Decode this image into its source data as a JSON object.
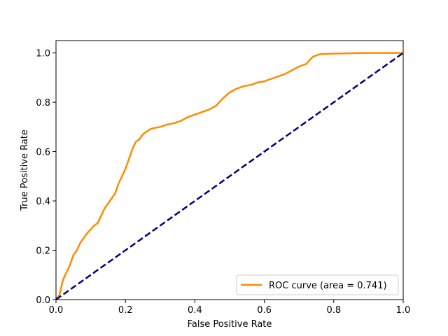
{
  "chart_data": {
    "type": "line",
    "title": "",
    "xlabel": "False Positive Rate",
    "ylabel": "True Positive Rate",
    "xlim": [
      0.0,
      1.0
    ],
    "ylim": [
      0.0,
      1.05
    ],
    "xticks": [
      "0.0",
      "0.2",
      "0.4",
      "0.6",
      "0.8",
      "1.0"
    ],
    "yticks": [
      "0.0",
      "0.2",
      "0.4",
      "0.6",
      "0.8",
      "1.0"
    ],
    "grid": false,
    "legend_position": "lower-right",
    "series": [
      {
        "name": "ROC curve (area = 0.741)",
        "color": "#ff8c00",
        "style": "solid",
        "x": [
          0.0,
          0.01,
          0.015,
          0.02,
          0.03,
          0.04,
          0.05,
          0.06,
          0.07,
          0.08,
          0.09,
          0.1,
          0.11,
          0.12,
          0.13,
          0.14,
          0.15,
          0.16,
          0.17,
          0.18,
          0.19,
          0.2,
          0.21,
          0.22,
          0.23,
          0.24,
          0.25,
          0.26,
          0.27,
          0.28,
          0.3,
          0.32,
          0.34,
          0.36,
          0.38,
          0.4,
          0.42,
          0.44,
          0.46,
          0.47,
          0.48,
          0.5,
          0.52,
          0.54,
          0.56,
          0.58,
          0.6,
          0.62,
          0.64,
          0.66,
          0.68,
          0.7,
          0.72,
          0.73,
          0.74,
          0.75,
          0.76,
          0.8,
          0.85,
          0.9,
          1.0
        ],
        "y": [
          0.0,
          0.02,
          0.05,
          0.08,
          0.11,
          0.14,
          0.18,
          0.2,
          0.23,
          0.25,
          0.27,
          0.285,
          0.3,
          0.31,
          0.34,
          0.37,
          0.39,
          0.41,
          0.43,
          0.47,
          0.5,
          0.53,
          0.57,
          0.61,
          0.64,
          0.65,
          0.67,
          0.68,
          0.69,
          0.695,
          0.7,
          0.71,
          0.715,
          0.725,
          0.74,
          0.75,
          0.76,
          0.77,
          0.785,
          0.8,
          0.815,
          0.84,
          0.855,
          0.865,
          0.87,
          0.88,
          0.885,
          0.895,
          0.905,
          0.915,
          0.93,
          0.945,
          0.955,
          0.97,
          0.985,
          0.99,
          0.995,
          0.997,
          0.999,
          1.0,
          1.0
        ]
      },
      {
        "name": "",
        "color": "#000080",
        "style": "dashed",
        "x": [
          0.0,
          1.0
        ],
        "y": [
          0.0,
          1.0
        ]
      }
    ]
  }
}
